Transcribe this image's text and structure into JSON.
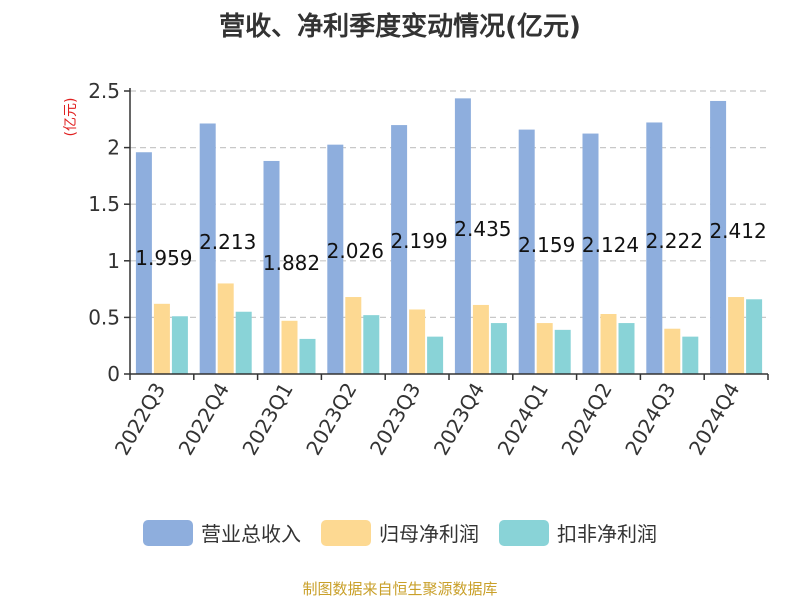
{
  "chart_data": {
    "type": "bar",
    "title": "营收、净利季度变动情况(亿元)",
    "ylabel": "(亿元)",
    "xlabel": "",
    "ylim": [
      0,
      2.5
    ],
    "yticks": [
      "0",
      "0.5",
      "1",
      "1.5",
      "2",
      "2.5"
    ],
    "grid": true,
    "legend_position": "bottom",
    "categories": [
      "2022Q3",
      "2022Q4",
      "2023Q1",
      "2023Q2",
      "2023Q3",
      "2023Q4",
      "2024Q1",
      "2024Q2",
      "2024Q3",
      "2024Q4"
    ],
    "series": [
      {
        "name": "营业总收入",
        "color": "#8eaedd",
        "values": [
          1.959,
          2.213,
          1.882,
          2.026,
          2.199,
          2.435,
          2.159,
          2.124,
          2.222,
          2.412
        ]
      },
      {
        "name": "归母净利润",
        "color": "#fdd992",
        "values": [
          0.62,
          0.8,
          0.47,
          0.68,
          0.57,
          0.61,
          0.45,
          0.53,
          0.4,
          0.68
        ]
      },
      {
        "name": "扣非净利润",
        "color": "#89d3d7",
        "values": [
          0.51,
          0.55,
          0.31,
          0.52,
          0.33,
          0.45,
          0.39,
          0.45,
          0.33,
          0.66
        ]
      }
    ],
    "data_labels": {
      "series": "营业总收入",
      "values": [
        "1.959",
        "2.213",
        "1.882",
        "2.026",
        "2.199",
        "2.435",
        "2.159",
        "2.124",
        "2.222",
        "2.412"
      ]
    }
  },
  "source": "制图数据来自恒生聚源数据库"
}
